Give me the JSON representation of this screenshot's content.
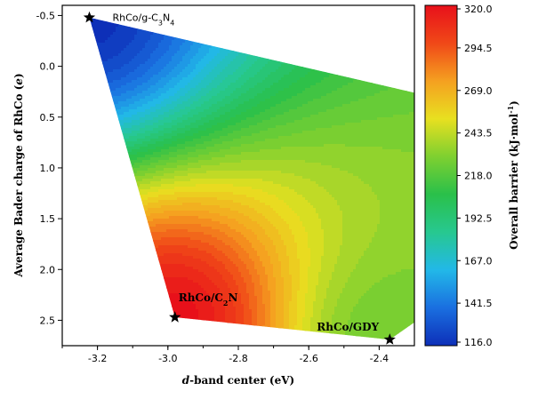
{
  "chart_data": {
    "type": "heatmap",
    "xlabel_italic": "d",
    "xlabel_rest": "-band center (eV)",
    "ylabel_text": "Average Bader charge of RhCo (",
    "ylabel_italic": "e",
    "ylabel_close": ")",
    "xlim": [
      -3.3,
      -2.3
    ],
    "ylim": [
      2.75,
      -0.6
    ],
    "y_inverted": true,
    "x_ticks": [
      -3.2,
      -3.0,
      -2.8,
      -2.6,
      -2.4
    ],
    "x_tick_labels": [
      "-3.2",
      "-3.0",
      "-2.8",
      "-2.6",
      "-2.4"
    ],
    "y_ticks": [
      -0.5,
      0.0,
      0.5,
      1.0,
      1.5,
      2.0,
      2.5
    ],
    "y_tick_labels": [
      "-0.5",
      "0.0",
      "0.5",
      "1.0",
      "1.5",
      "2.0",
      "2.5"
    ],
    "grid": false,
    "region_polygon": [
      {
        "x": -3.223,
        "y": -0.48
      },
      {
        "x": -2.3,
        "y": 0.26
      },
      {
        "x": -2.3,
        "y": 2.52
      },
      {
        "x": -2.37,
        "y": 2.69
      },
      {
        "x": -2.98,
        "y": 2.47
      }
    ],
    "points": [
      {
        "x": -3.223,
        "y": -0.48,
        "label_main": "RhCo/g-C",
        "label_sub": "3",
        "label_mid": "N",
        "label_sub2": "4",
        "barrier": 116.0
      },
      {
        "x": -2.98,
        "y": 2.47,
        "label_main": "RhCo/C",
        "label_sub": "2",
        "label_mid": "N",
        "label_sub2": "",
        "barrier": 320.0
      },
      {
        "x": -2.37,
        "y": 2.69,
        "label_main": "RhCo/GDY",
        "label_sub": "",
        "label_mid": "",
        "label_sub2": "",
        "barrier": 226.0
      }
    ],
    "colorbar": {
      "min": 116.0,
      "max": 320.0,
      "ticks": [
        116.0,
        141.5,
        167.0,
        192.5,
        218.0,
        243.5,
        269.0,
        294.5,
        320.0
      ],
      "tick_labels": [
        "116.0",
        "141.5",
        "167.0",
        "192.5",
        "218.0",
        "243.5",
        "269.0",
        "294.5",
        "320.0"
      ],
      "label_main": "Overall barrier (kJ·mol",
      "label_sup": "-1",
      "label_close": ")",
      "colors": [
        "#0d2fb8",
        "#1a6fe0",
        "#22b8e8",
        "#27c890",
        "#2ac04a",
        "#7ed030",
        "#e8e020",
        "#f5a020",
        "#f04818",
        "#e8101a"
      ]
    }
  }
}
